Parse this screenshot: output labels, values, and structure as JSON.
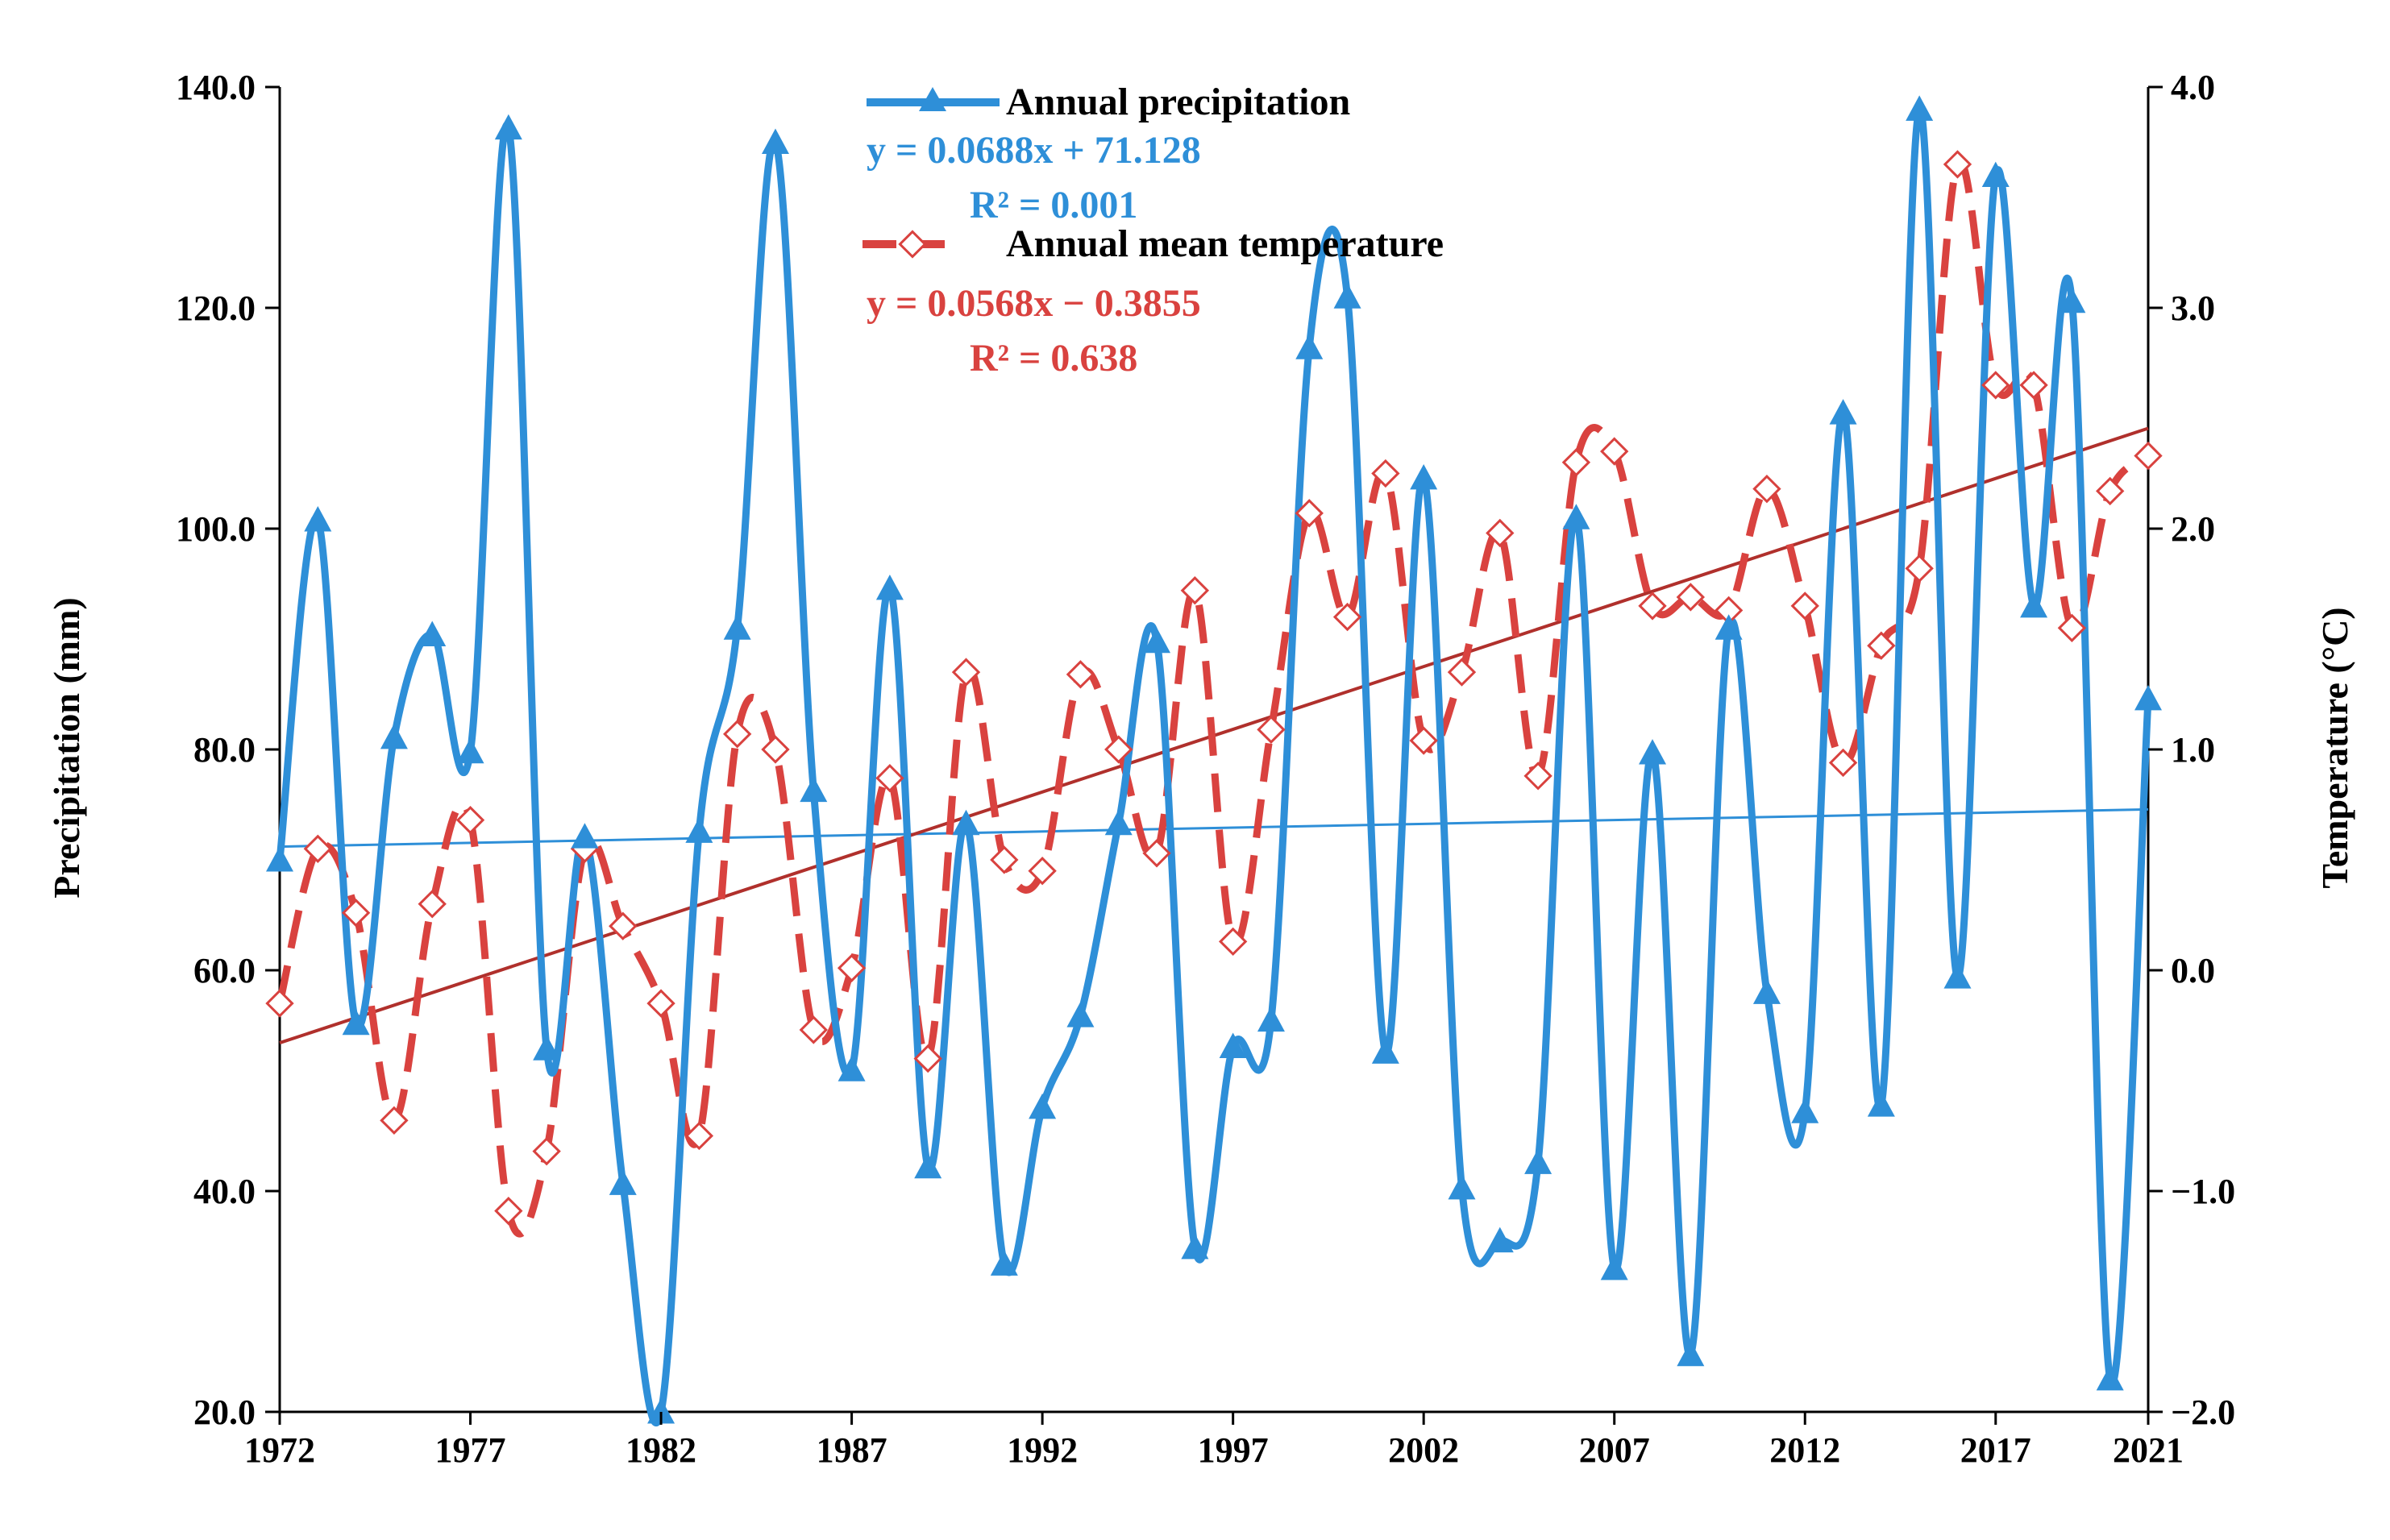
{
  "colors": {
    "precip": "#2E8FD8",
    "temp": "#D9423F",
    "temp_trend": "#B0302C",
    "axis": "#000000"
  },
  "legend": {
    "precip_title": "Annual precipitation",
    "precip_eq": "y = 0.0688x + 71.128",
    "precip_r2": "R² = 0.001",
    "temp_title": "Annual mean temperature",
    "temp_eq": "y = 0.0568x − 0.3855",
    "temp_r2": "R² = 0.638"
  },
  "chart_data": {
    "type": "line",
    "title": "",
    "xlabel": "",
    "ylabel": "Precipitation (mm)",
    "y2label": "Temperature (°C)",
    "ylim": [
      20,
      140
    ],
    "y2lim": [
      -2,
      4
    ],
    "xlim": [
      1972,
      2021
    ],
    "x_ticks": [
      1972,
      1977,
      1982,
      1987,
      1992,
      1997,
      2002,
      2007,
      2012,
      2017,
      2021
    ],
    "y_ticks": [
      "20.0",
      "40.0",
      "60.0",
      "80.0",
      "100.0",
      "120.0",
      "140.0"
    ],
    "y2_ticks": [
      "−2.0",
      "−1.0",
      "0.0",
      "1.0",
      "2.0",
      "3.0",
      "4.0"
    ],
    "x": [
      1972,
      1973,
      1974,
      1975,
      1976,
      1977,
      1978,
      1979,
      1980,
      1981,
      1982,
      1983,
      1984,
      1985,
      1986,
      1987,
      1988,
      1989,
      1990,
      1991,
      1992,
      1993,
      1994,
      1995,
      1996,
      1997,
      1998,
      1999,
      2000,
      2001,
      2002,
      2003,
      2004,
      2005,
      2006,
      2007,
      2008,
      2009,
      2010,
      2011,
      2012,
      2013,
      2014,
      2015,
      2016,
      2017,
      2018,
      2019,
      2020,
      2021
    ],
    "series": [
      {
        "name": "Annual precipitation",
        "axis": "left",
        "marker": "triangle",
        "values": [
          70.0,
          100.8,
          55.2,
          81.1,
          90.4,
          79.8,
          136.3,
          52.9,
          72.1,
          40.7,
          20.0,
          72.6,
          91.0,
          135.0,
          76.3,
          51.0,
          94.6,
          42.2,
          73.3,
          33.4,
          47.6,
          55.9,
          73.3,
          89.8,
          34.9,
          53.1,
          55.5,
          116.4,
          121.0,
          52.6,
          104.6,
          40.3,
          35.5,
          42.6,
          101.0,
          33.0,
          79.7,
          25.2,
          91.0,
          58.0,
          47.2,
          110.5,
          47.8,
          138.0,
          59.4,
          132.0,
          93.0,
          120.6,
          23.0,
          84.6
        ]
      },
      {
        "name": "Annual mean temperature",
        "axis": "right",
        "marker": "diamond-open",
        "values": [
          -0.15,
          0.55,
          0.26,
          -0.68,
          0.3,
          0.68,
          -1.09,
          -0.82,
          0.55,
          0.2,
          -0.15,
          -0.75,
          1.07,
          1.0,
          -0.27,
          0.01,
          0.87,
          -0.4,
          1.35,
          0.5,
          0.45,
          1.34,
          1.0,
          0.53,
          1.72,
          0.13,
          1.09,
          2.07,
          1.6,
          2.25,
          1.04,
          1.35,
          1.98,
          0.88,
          2.3,
          2.35,
          1.65,
          1.69,
          1.63,
          2.18,
          1.65,
          0.94,
          1.47,
          1.82,
          3.65,
          2.65,
          2.65,
          1.55,
          2.17,
          2.33
        ]
      }
    ],
    "trendlines": [
      {
        "name": "Precipitation trend",
        "axis": "left",
        "slope": 0.0688,
        "intercept": 71.128,
        "equation": "y = 0.0688x + 71.128",
        "r2": "R² = 0.001"
      },
      {
        "name": "Temperature trend",
        "axis": "right",
        "slope": 0.0568,
        "intercept": -0.3855,
        "equation": "y = 0.0568x − 0.3855",
        "r2": "R² = 0.638"
      }
    ]
  }
}
